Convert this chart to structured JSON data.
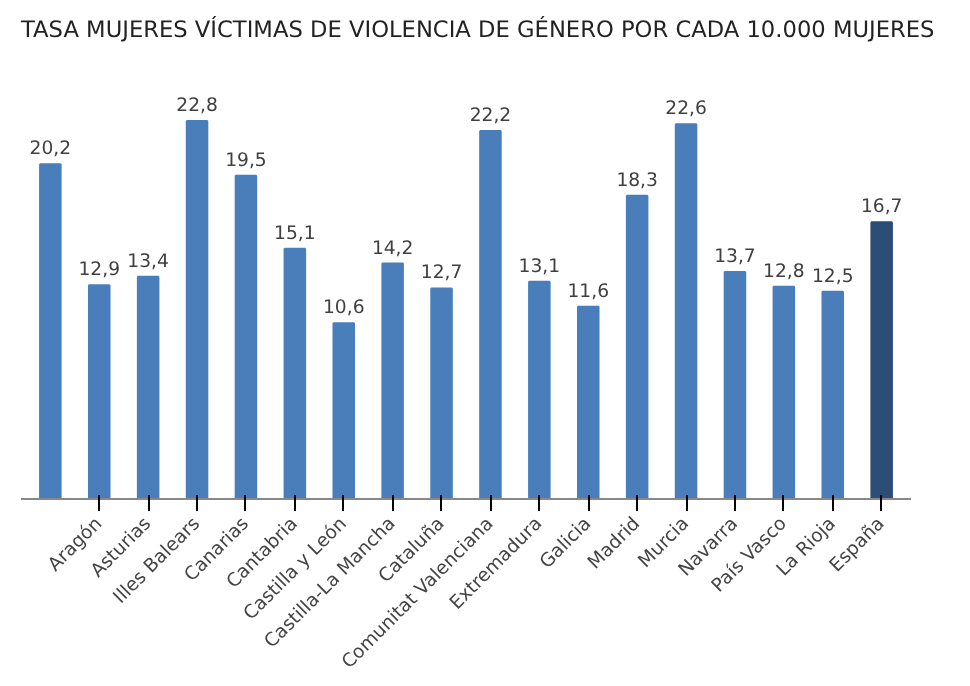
{
  "chart_data": {
    "type": "bar",
    "title": "TASA MUJERES VÍCTIMAS DE VIOLENCIA DE GÉNERO POR CADA 10.000 MUJERES",
    "categories": [
      null,
      "Aragón",
      "Asturias",
      "Illes Balears",
      "Canarias",
      "Cantabria",
      "Castilla y León",
      "Castilla-La Mancha",
      "Cataluña",
      "Comunitat Valenciana",
      "Extremadura",
      "Galicia",
      "Madrid",
      "Murcia",
      "Navarra",
      "País Vasco",
      "La Rioja",
      "España"
    ],
    "values": [
      20.2,
      12.9,
      13.4,
      22.8,
      19.5,
      15.1,
      10.6,
      14.2,
      12.7,
      22.2,
      13.1,
      11.6,
      18.3,
      22.6,
      13.7,
      12.8,
      12.5,
      16.7
    ],
    "colors": [
      "#4a7ebb",
      "#4a7ebb",
      "#4a7ebb",
      "#4a7ebb",
      "#4a7ebb",
      "#4a7ebb",
      "#4a7ebb",
      "#4a7ebb",
      "#4a7ebb",
      "#4a7ebb",
      "#4a7ebb",
      "#4a7ebb",
      "#4a7ebb",
      "#4a7ebb",
      "#4a7ebb",
      "#4a7ebb",
      "#4a7ebb",
      "#2c4d75"
    ],
    "value_labels": [
      "20,2",
      "12,9",
      "13,4",
      "22,8",
      "19,5",
      "15,1",
      "10,6",
      "14,2",
      "12,7",
      "22,2",
      "13,1",
      "11,6",
      "18,3",
      "22,6",
      "13,7",
      "12,8",
      "12,5",
      "16,7"
    ],
    "grid": false
  }
}
